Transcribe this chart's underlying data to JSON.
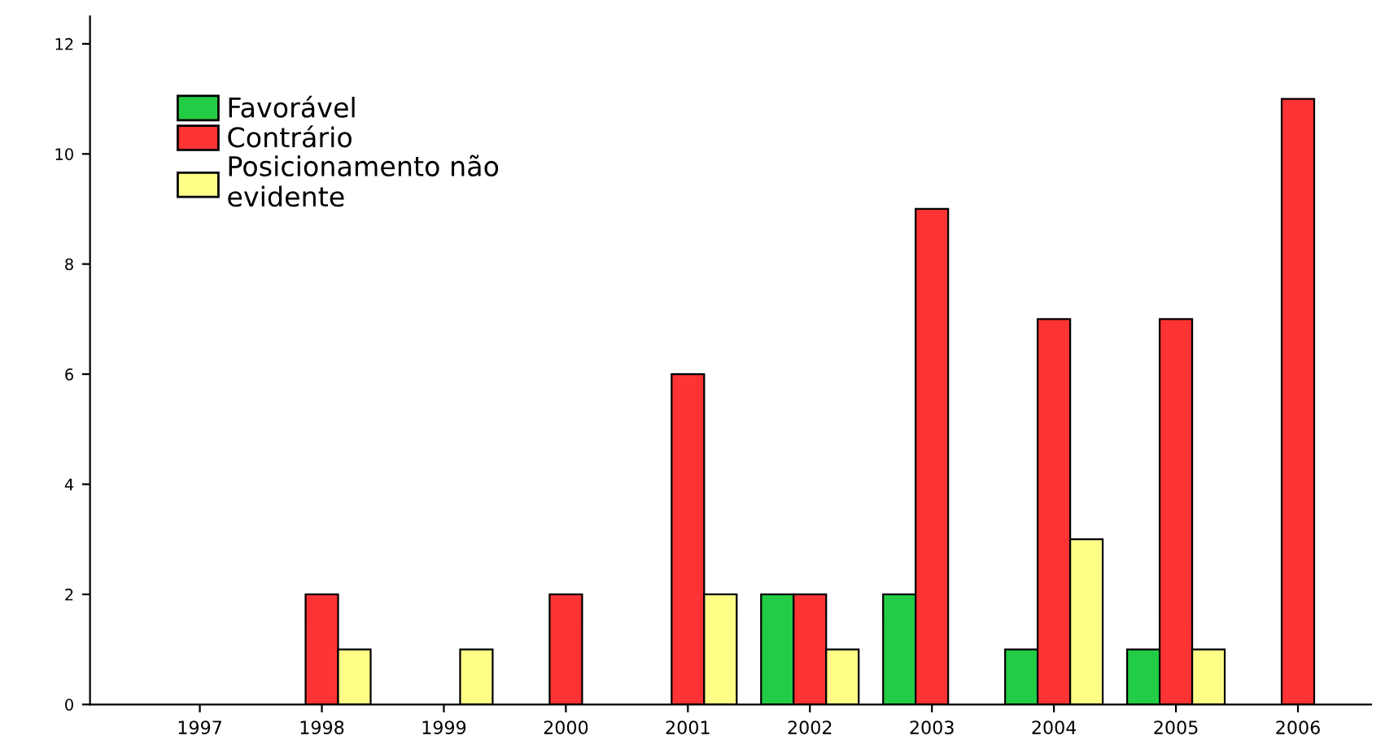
{
  "chart_data": {
    "type": "bar",
    "categories": [
      "1997",
      "1998",
      "1999",
      "2000",
      "2001",
      "2002",
      "2003",
      "2004",
      "2005",
      "2006"
    ],
    "series": [
      {
        "name": "Favorável",
        "color": "#22cc44",
        "values": [
          null,
          null,
          null,
          null,
          null,
          2,
          2,
          1,
          1,
          null
        ]
      },
      {
        "name": "Contrário",
        "color": "#ff3333",
        "values": [
          null,
          2,
          null,
          2,
          6,
          2,
          9,
          7,
          7,
          11
        ]
      },
      {
        "name": "Posicionamento não\nevidente",
        "color": "#ffff88",
        "values": [
          null,
          1,
          1,
          null,
          2,
          1,
          null,
          3,
          1,
          null
        ]
      }
    ],
    "ylim": [
      0,
      12.5
    ],
    "yticks": [
      0,
      2,
      4,
      6,
      8,
      10,
      12
    ],
    "grid": false,
    "legend": "top left"
  }
}
